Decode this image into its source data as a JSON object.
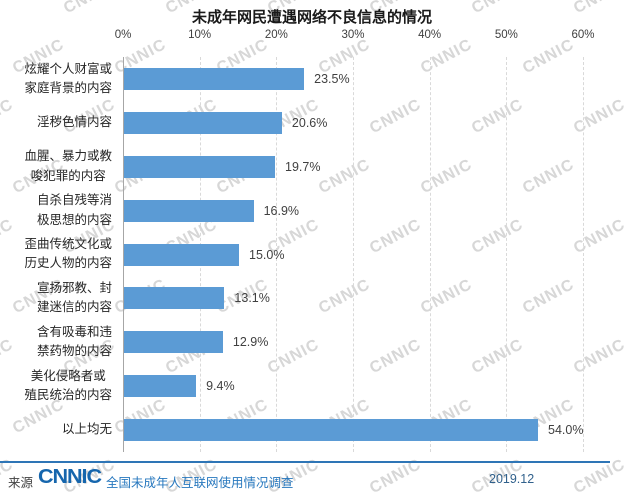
{
  "watermark": {
    "text": "CNNIC"
  },
  "chart_data": {
    "type": "bar",
    "orientation": "horizontal",
    "title": "未成年网民遭遇网络不良信息的情况",
    "categories": [
      "炫耀个人财富或\n家庭背景的内容",
      "淫秽色情内容",
      "血腥、暴力或教\n唆犯罪的内容",
      "自杀自残等消\n极思想的内容",
      "歪曲传统文化或\n历史人物的内容",
      "宣扬邪教、封\n建迷信的内容",
      "含有吸毒和违\n禁药物的内容",
      "美化侵略者或\n殖民统治的内容",
      "以上均无"
    ],
    "values": [
      23.5,
      20.6,
      19.7,
      16.9,
      15.0,
      13.1,
      12.9,
      9.4,
      54.0
    ],
    "value_labels": [
      "23.5%",
      "20.6%",
      "19.7%",
      "16.9%",
      "15.0%",
      "13.1%",
      "12.9%",
      "9.4%",
      "54.0%"
    ],
    "xlabel": "",
    "ylabel": "",
    "xlim": [
      0,
      60
    ],
    "x_ticks": [
      "0%",
      "10%",
      "20%",
      "30%",
      "40%",
      "50%",
      "60%"
    ],
    "x_tick_values": [
      0,
      10,
      20,
      30,
      40,
      50,
      60
    ],
    "grid": "dashed-vertical",
    "legend": "none",
    "bar_color": "#5b9bd5"
  },
  "footer": {
    "source_label": "来源",
    "logo_text": "CNNIC",
    "survey_name": "全国未成年人互联网使用情况调查",
    "date": "2019.12",
    "accent_color": "#2e75b6"
  }
}
